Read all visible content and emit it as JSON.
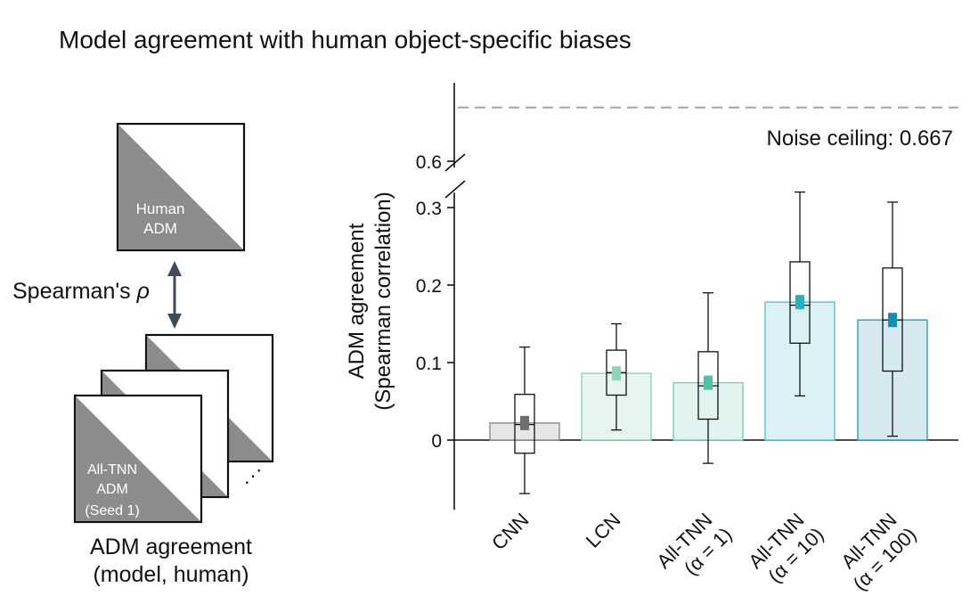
{
  "figure": {
    "title": "Model agreement with human object-specific biases"
  },
  "schematic": {
    "human_label_line1": "Human",
    "human_label_line2": "ADM",
    "comparison_label": "Spearman's",
    "rho_symbol": "ρ",
    "model_label_line1": "All-TNN",
    "model_label_line2": "ADM",
    "model_label_line3": "(Seed 1)",
    "ellipsis": "⋰",
    "caption_line1": "ADM agreement",
    "caption_line2": "(model, human)",
    "colors": {
      "triangle": "#8c8c8c",
      "frame": "#111111"
    }
  },
  "chart_data": {
    "type": "bar",
    "ylabel_line1": "ADM agreement",
    "ylabel_line2": "(Spearman correlation)",
    "ylim": [
      -0.09,
      0.31
    ],
    "yticks": [
      0,
      0.1,
      0.2,
      0.3
    ],
    "ytick_labels": [
      "0",
      "0.1",
      "0.2",
      "0.3"
    ],
    "upper_tick": {
      "value": 0.6,
      "label": "0.6"
    },
    "noise_ceiling": {
      "value": 0.667,
      "label": "Noise ceiling: 0.667"
    },
    "categories": [
      {
        "line1": "CNN",
        "line2": ""
      },
      {
        "line1": "LCN",
        "line2": ""
      },
      {
        "line1": "All-TNN",
        "line2": "(α = 1)"
      },
      {
        "line1": "All-TNN",
        "line2": "(α = 10)"
      },
      {
        "line1": "All-TNN",
        "line2": "(α = 100)"
      }
    ],
    "values": [
      0.022,
      0.086,
      0.074,
      0.178,
      0.155
    ],
    "boxes": [
      {
        "whisker_low": -0.069,
        "q1": -0.017,
        "median": 0.02,
        "q3": 0.059,
        "whisker_high": 0.12,
        "mean": 0.022
      },
      {
        "whisker_low": 0.013,
        "q1": 0.058,
        "median": 0.087,
        "q3": 0.116,
        "whisker_high": 0.15,
        "mean": 0.086
      },
      {
        "whisker_low": -0.03,
        "q1": 0.027,
        "median": 0.07,
        "q3": 0.114,
        "whisker_high": 0.19,
        "mean": 0.074
      },
      {
        "whisker_low": 0.057,
        "q1": 0.125,
        "median": 0.174,
        "q3": 0.23,
        "whisker_high": 0.32,
        "mean": 0.178
      },
      {
        "whisker_low": 0.005,
        "q1": 0.089,
        "median": 0.155,
        "q3": 0.222,
        "whisker_high": 0.307,
        "mean": 0.155
      }
    ],
    "colors": {
      "bar_fill": [
        "#e6e6e6",
        "#e6f6ee",
        "#e2f4f0",
        "#dcf1f5",
        "#d6e9f1"
      ],
      "bar_edge": [
        "#8a8a8a",
        "#8fd5b5",
        "#79cdb9",
        "#56c2cf",
        "#2f9bb5"
      ],
      "mean_marker": [
        "#6e6e6e",
        "#8fd5b5",
        "#52bea6",
        "#2ab0c2",
        "#168fb0"
      ],
      "noise_ceiling": "#a8a8a8"
    },
    "grid": false,
    "legend": "none"
  }
}
